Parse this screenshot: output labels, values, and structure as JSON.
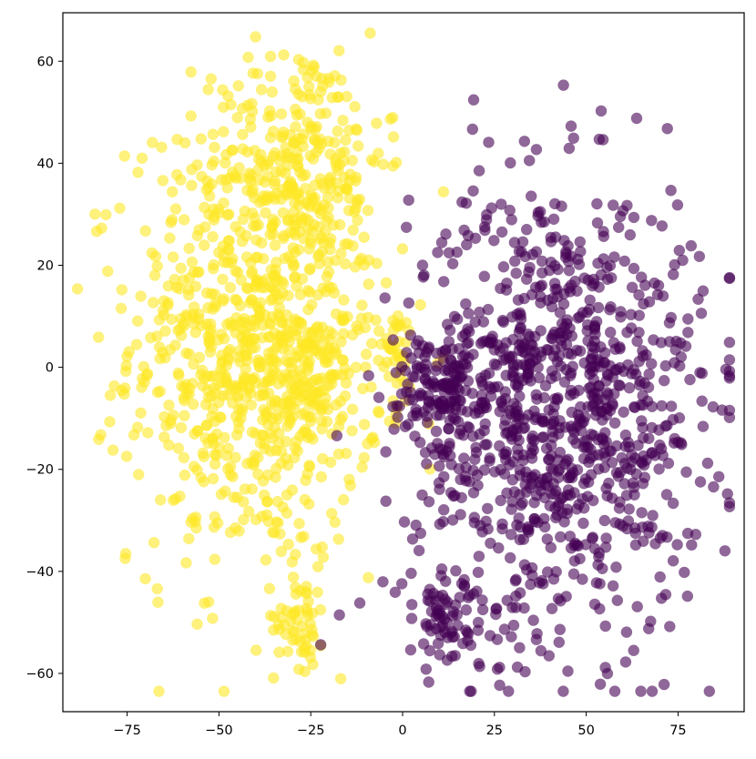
{
  "chart_data": {
    "type": "scatter",
    "title": "",
    "xlabel": "",
    "ylabel": "",
    "xlim": [
      -92.5,
      93
    ],
    "ylim": [
      -67.5,
      69.5
    ],
    "grid": false,
    "legend": "none",
    "xticks": [
      -75,
      -50,
      -25,
      0,
      25,
      50,
      75
    ],
    "xtick_labels": [
      "−75",
      "−50",
      "−25",
      "0",
      "25",
      "50",
      "75"
    ],
    "yticks": [
      60,
      40,
      20,
      0,
      -20,
      -40,
      -60
    ],
    "ytick_labels": [
      "60",
      "40",
      "20",
      "0",
      "−20",
      "−40",
      "−60"
    ],
    "series": [
      {
        "color": "#fde725",
        "opacity": 0.6,
        "clusters": [
          {
            "cx": -40,
            "cy": 5,
            "sx": 17,
            "sy": 22,
            "n": 850
          },
          {
            "cx": -27,
            "cy": 42,
            "sx": 11,
            "sy": 11,
            "n": 190
          },
          {
            "cx": -25,
            "cy": -3,
            "sx": 7,
            "sy": 6,
            "n": 90
          },
          {
            "cx": -28,
            "cy": -49,
            "sx": 3.5,
            "sy": 5,
            "n": 55
          },
          {
            "cx": -3,
            "cy": 3,
            "sx": 4,
            "sy": 6,
            "n": 40
          }
        ]
      },
      {
        "color": "#440154",
        "opacity": 0.6,
        "clusters": [
          {
            "cx": 42,
            "cy": -8,
            "sx": 20,
            "sy": 22,
            "n": 1020
          },
          {
            "cx": 10,
            "cy": -4,
            "sx": 6,
            "sy": 5,
            "n": 110
          },
          {
            "cx": 12,
            "cy": -50,
            "sx": 8,
            "sy": 5,
            "n": 70
          }
        ]
      }
    ]
  }
}
